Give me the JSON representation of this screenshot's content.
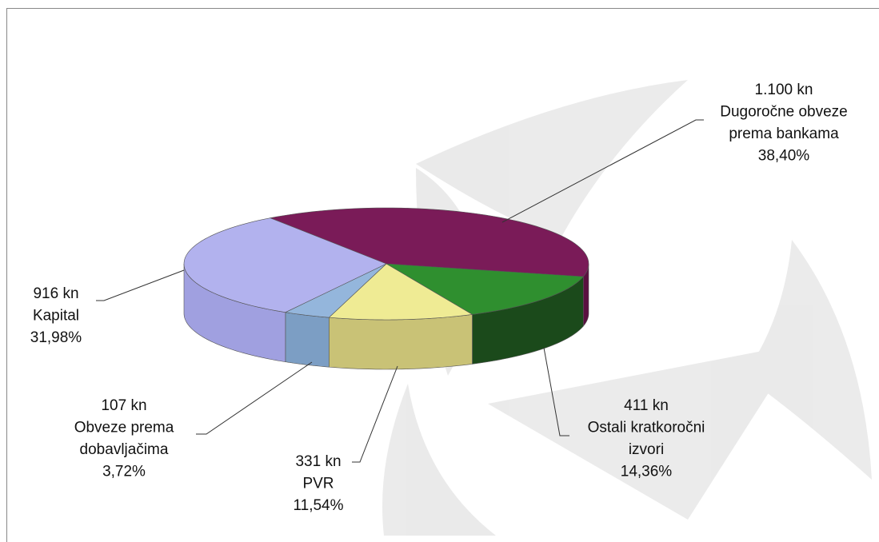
{
  "chart_data": {
    "type": "pie3d",
    "categories": [
      [
        "Dugoročne obveze",
        "prema bankama"
      ],
      [
        "Ostali kratkoročni",
        "izvori"
      ],
      [
        "PVR"
      ],
      [
        "Obveze prema",
        "dobavljačima"
      ],
      [
        "Kapital"
      ]
    ],
    "values": [
      1100,
      411,
      331,
      107,
      916
    ],
    "value_labels": [
      "1.100 kn",
      "411 kn",
      "331 kn",
      "107 kn",
      "916 kn"
    ],
    "percents": [
      38.4,
      14.36,
      11.54,
      3.72,
      31.98
    ],
    "percent_labels": [
      "38,40%",
      "14,36%",
      "11,54%",
      "3,72%",
      "31,98%"
    ],
    "colors": [
      "#7a1b58",
      "#2f8f2f",
      "#efeb94",
      "#94b6dc",
      "#b2b2ee"
    ],
    "side_colors": [
      "#5a1040",
      "#1b4a1b",
      "#c9c276",
      "#7c9ec4",
      "#a0a0e0"
    ]
  }
}
